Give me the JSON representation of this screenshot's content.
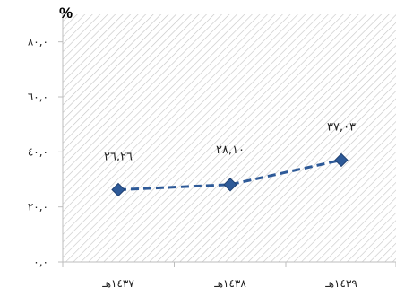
{
  "chart_data": {
    "type": "line",
    "unit_label": "%",
    "categories": [
      "١٤٣٧هـ",
      "١٤٣٨هـ",
      "١٤٣٩هـ"
    ],
    "series": [
      {
        "values": [
          26.26,
          28.1,
          37.03
        ],
        "color": "#2E5A98",
        "line_style": "dashed",
        "marker": "diamond"
      }
    ],
    "data_labels": [
      "٢٦,٢٦",
      "٢٨,١٠",
      "٣٧,٠٣"
    ],
    "y_ticks": [
      0,
      20,
      40,
      60,
      80
    ],
    "y_tick_labels": [
      "٠,٠",
      "٢٠,٠",
      "٤٠,٠",
      "٦٠,٠",
      "٨٠,٠"
    ],
    "ylim": [
      0,
      90
    ],
    "grid": false,
    "background": "diagonal-hatch",
    "title": "",
    "xlabel": "",
    "ylabel": ""
  }
}
